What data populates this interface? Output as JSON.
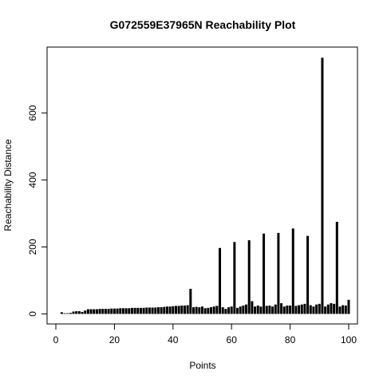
{
  "chart_data": {
    "type": "bar",
    "title": "G072559E37965N Reachability Plot",
    "xlabel": "Points",
    "ylabel": "Reachability Distance",
    "xlim": [
      -3,
      103
    ],
    "ylim": [
      -30,
      797
    ],
    "x_ticks": [
      0,
      20,
      40,
      60,
      80,
      100
    ],
    "y_ticks": [
      0,
      200,
      400,
      600
    ],
    "grid": false,
    "x": [
      1,
      2,
      3,
      4,
      5,
      6,
      7,
      8,
      9,
      10,
      11,
      12,
      13,
      14,
      15,
      16,
      17,
      18,
      19,
      20,
      21,
      22,
      23,
      24,
      25,
      26,
      27,
      28,
      29,
      30,
      31,
      32,
      33,
      34,
      35,
      36,
      37,
      38,
      39,
      40,
      41,
      42,
      43,
      44,
      45,
      46,
      47,
      48,
      49,
      50,
      51,
      52,
      53,
      54,
      55,
      56,
      57,
      58,
      59,
      60,
      61,
      62,
      63,
      64,
      65,
      66,
      67,
      68,
      69,
      70,
      71,
      72,
      73,
      74,
      75,
      76,
      77,
      78,
      79,
      80,
      81,
      82,
      83,
      84,
      85,
      86,
      87,
      88,
      89,
      90,
      91,
      92,
      93,
      94,
      95,
      96,
      97,
      98,
      99,
      100
    ],
    "values": [
      0,
      5,
      2,
      2,
      3,
      7,
      8,
      8,
      6,
      10,
      14,
      14,
      14,
      14,
      15,
      15,
      15,
      15,
      16,
      16,
      16,
      17,
      17,
      17,
      17,
      18,
      18,
      18,
      18,
      18,
      19,
      19,
      19,
      19,
      20,
      20,
      21,
      22,
      22,
      23,
      24,
      24,
      25,
      25,
      26,
      75,
      20,
      21,
      20,
      22,
      17,
      18,
      20,
      22,
      24,
      197,
      20,
      15,
      20,
      22,
      215,
      18,
      22,
      25,
      28,
      220,
      38,
      22,
      25,
      22,
      240,
      24,
      25,
      22,
      28,
      242,
      32,
      22,
      25,
      25,
      255,
      24,
      26,
      28,
      30,
      233,
      26,
      22,
      28,
      30,
      765,
      22,
      28,
      32,
      30,
      275,
      22,
      26,
      25,
      42
    ]
  }
}
